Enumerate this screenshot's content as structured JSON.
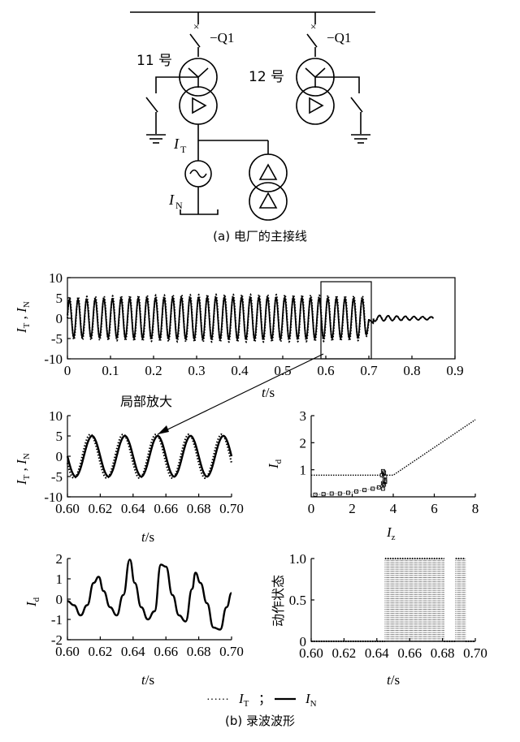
{
  "circuit": {
    "breaker_left": "−Q1",
    "breaker_right": "−Q1",
    "unit_left": "11 号",
    "unit_right": "12 号",
    "current_t_base": "I",
    "current_t_sub": "T",
    "current_n_base": "I",
    "current_n_sub": "N",
    "caption": "(a)  电厂的主接线"
  },
  "captions": {
    "b": "(b)  录波波形",
    "zoom_note": "局部放大"
  },
  "legend": {
    "dotted_dots": "······",
    "dotted_base": "I",
    "dotted_sub": "T",
    "separator": "；",
    "solid_base": "I",
    "solid_sub": "N"
  },
  "chart_data": [
    {
      "id": "top",
      "type": "line",
      "ylabel": "I_T , I_N",
      "xlabel": "t/s",
      "xlim": [
        0,
        0.9
      ],
      "ylim": [
        -10,
        10
      ],
      "xticks": [
        "0",
        "0.1",
        "0.2",
        "0.3",
        "0.4",
        "0.5",
        "0.6",
        "0.7",
        "0.8",
        "0.9"
      ],
      "yticks": [
        "10",
        "5",
        "0",
        "-5",
        "-10"
      ],
      "series": [
        {
          "style": "dotted",
          "frequency_hz": 50,
          "amplitude_before": 5.2,
          "amplitude_after_0_7s": 0.8,
          "end_s": 0.85
        },
        {
          "style": "solid",
          "frequency_hz": 50,
          "amplitude_before": 4.6,
          "amplitude_after_0_7s": 0.8,
          "end_s": 0.85
        }
      ],
      "annotations": [
        "zoom box 0.59–0.70 s"
      ]
    },
    {
      "id": "zoom",
      "type": "line",
      "ylabel": "I_T , I_N",
      "xlabel": "t/s",
      "xlim": [
        0.6,
        0.7
      ],
      "ylim": [
        -10,
        10
      ],
      "xticks": [
        "0.60",
        "0.62",
        "0.64",
        "0.66",
        "0.68",
        "0.70"
      ],
      "yticks": [
        "10",
        "5",
        "0",
        "-5",
        "-10"
      ],
      "series": [
        {
          "style": "dotted",
          "frequency_hz": 50,
          "amplitude": 5.4,
          "phase_peak_s": 0.614
        },
        {
          "style": "solid",
          "frequency_hz": 50,
          "amplitude": 5.0,
          "phase_peak_s": 0.615
        }
      ]
    },
    {
      "id": "char",
      "type": "scatter",
      "ylabel": "I_d",
      "xlabel": "I_z",
      "xlim": [
        0,
        8
      ],
      "ylim": [
        0,
        3
      ],
      "xticks": [
        "0",
        "2",
        "4",
        "6",
        "8"
      ],
      "yticks": [
        "3",
        "2",
        "1"
      ],
      "series": [
        {
          "style": "dotted-line",
          "name": "restraint characteristic",
          "x": [
            0,
            3.8,
            4.0,
            8.0
          ],
          "y": [
            0.8,
            0.8,
            0.8,
            2.85
          ]
        },
        {
          "style": "square-markers",
          "x": [
            0.2,
            0.6,
            1.0,
            1.4,
            1.8,
            2.2,
            2.6,
            3.0,
            3.3,
            3.5,
            3.55,
            3.6,
            3.6,
            3.55,
            3.5,
            3.45,
            3.5,
            3.6
          ],
          "y": [
            0.08,
            0.1,
            0.12,
            0.12,
            0.15,
            0.2,
            0.25,
            0.3,
            0.35,
            0.5,
            0.9,
            0.75,
            0.6,
            0.45,
            0.3,
            0.8,
            0.95,
            0.55
          ]
        }
      ]
    },
    {
      "id": "id",
      "type": "line",
      "ylabel": "I_d",
      "xlabel": "t/s",
      "xlim": [
        0.6,
        0.7
      ],
      "ylim": [
        -2,
        2
      ],
      "xticks": [
        "0.60",
        "0.62",
        "0.64",
        "0.66",
        "0.68",
        "0.70"
      ],
      "yticks": [
        "2",
        "1",
        "0",
        "-1",
        "-2"
      ],
      "series": [
        {
          "style": "solid",
          "x": [
            0.6,
            0.604,
            0.608,
            0.612,
            0.616,
            0.619,
            0.622,
            0.626,
            0.63,
            0.634,
            0.638,
            0.641,
            0.645,
            0.649,
            0.653,
            0.657,
            0.66,
            0.664,
            0.668,
            0.672,
            0.676,
            0.678,
            0.681,
            0.685,
            0.689,
            0.693,
            0.697,
            0.7
          ],
          "y": [
            -0.1,
            -0.3,
            -0.8,
            -0.3,
            0.8,
            1.1,
            0.4,
            -0.4,
            -0.8,
            0.2,
            1.95,
            0.8,
            -0.4,
            -1.0,
            -0.6,
            1.7,
            1.6,
            0.2,
            -0.8,
            -1.1,
            0.5,
            1.3,
            0.8,
            -0.2,
            -1.4,
            -1.5,
            -0.4,
            0.3
          ]
        }
      ]
    },
    {
      "id": "action",
      "type": "line",
      "ylabel": "动作状态",
      "xlabel": "t/s",
      "xlim": [
        0.6,
        0.7
      ],
      "ylim": [
        0,
        1
      ],
      "xticks": [
        "0.60",
        "0.62",
        "0.64",
        "0.66",
        "0.68",
        "0.70"
      ],
      "yticks": [
        "1.0",
        "0.5",
        "0"
      ],
      "series": [
        {
          "style": "dotted-step",
          "segments": [
            {
              "x0": 0.6,
              "x1": 0.645,
              "y": 0
            },
            {
              "x0": 0.645,
              "x1": 0.681,
              "y": 1,
              "oscillating": true
            },
            {
              "x0": 0.681,
              "x1": 0.688,
              "y": 0
            },
            {
              "x0": 0.688,
              "x1": 0.694,
              "y": 1,
              "oscillating": true
            },
            {
              "x0": 0.694,
              "x1": 0.7,
              "y": 0
            }
          ]
        }
      ]
    }
  ]
}
